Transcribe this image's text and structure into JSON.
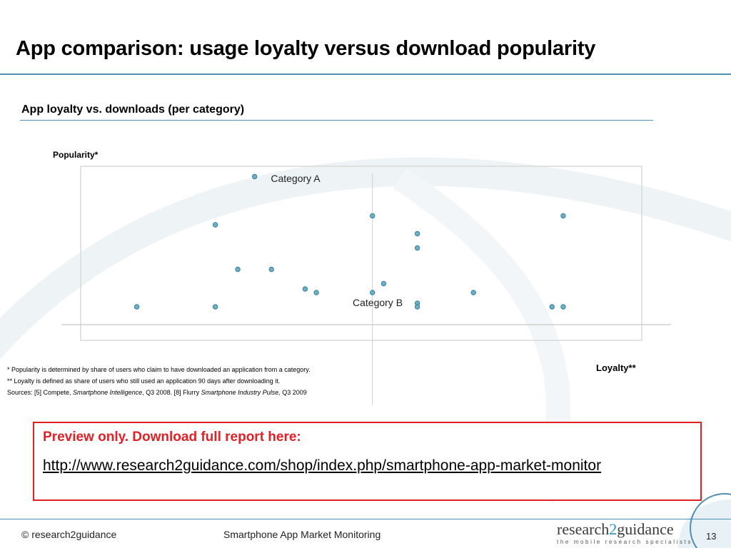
{
  "slide": {
    "title": "App comparison: usage loyalty versus download popularity"
  },
  "chart_heading": "App loyalty vs. downloads (per category)",
  "chart_data": {
    "type": "scatter",
    "title": "App loyalty vs. downloads (per category)",
    "xlabel": "Loyalty**",
    "ylabel": "Popularity*",
    "xlim": [
      0,
      100
    ],
    "ylim": [
      0,
      100
    ],
    "grid": false,
    "legend": "none",
    "reference_lines": {
      "x": 52,
      "y": 10
    },
    "marker_color": "#6ab0c8",
    "marker_edge_color": "#3a7f96",
    "points": [
      {
        "x": 10,
        "y": 20
      },
      {
        "x": 24,
        "y": 20
      },
      {
        "x": 24,
        "y": 66
      },
      {
        "x": 28,
        "y": 41
      },
      {
        "x": 31,
        "y": 93
      },
      {
        "x": 34,
        "y": 41
      },
      {
        "x": 40,
        "y": 30
      },
      {
        "x": 42,
        "y": 28
      },
      {
        "x": 52,
        "y": 71
      },
      {
        "x": 52,
        "y": 28
      },
      {
        "x": 54,
        "y": 33
      },
      {
        "x": 60,
        "y": 61
      },
      {
        "x": 60,
        "y": 53
      },
      {
        "x": 60,
        "y": 22
      },
      {
        "x": 60,
        "y": 20
      },
      {
        "x": 70,
        "y": 28
      },
      {
        "x": 84,
        "y": 20
      },
      {
        "x": 86,
        "y": 71
      },
      {
        "x": 86,
        "y": 20
      }
    ],
    "annotations": [
      {
        "text": "Category A"
      },
      {
        "text": "Category B"
      }
    ]
  },
  "footnotes": {
    "line1": "* Popularity is determined by share of users who claim to have downloaded an application from a category.",
    "line2": "** Loyalty is defined as share of users who still used an application 90 days after downloading it.",
    "line3_a": "Sources: [5] Compete, ",
    "line3_b": "Smartphone Intelligence",
    "line3_c": ", Q3 2008. [8] Flurry ",
    "line3_d": "Smartphone Industry Pulse,",
    "line3_e": " Q3 2009"
  },
  "preview": {
    "title": "Preview only. Download full report here:",
    "link": "http://www.research2guidance.com/shop/index.php/smartphone-app-market-monitor",
    "border_color": "#e32025"
  },
  "footer": {
    "copyright": "© research2guidance",
    "center": "Smartphone App Market Monitoring",
    "logo_a": "research",
    "logo_b": "2",
    "logo_c": "guidance",
    "logo_tagline": "the mobile research specialists",
    "page_number": "13"
  },
  "colors": {
    "accent": "#4f8fb3",
    "preview_red": "#e32025"
  }
}
